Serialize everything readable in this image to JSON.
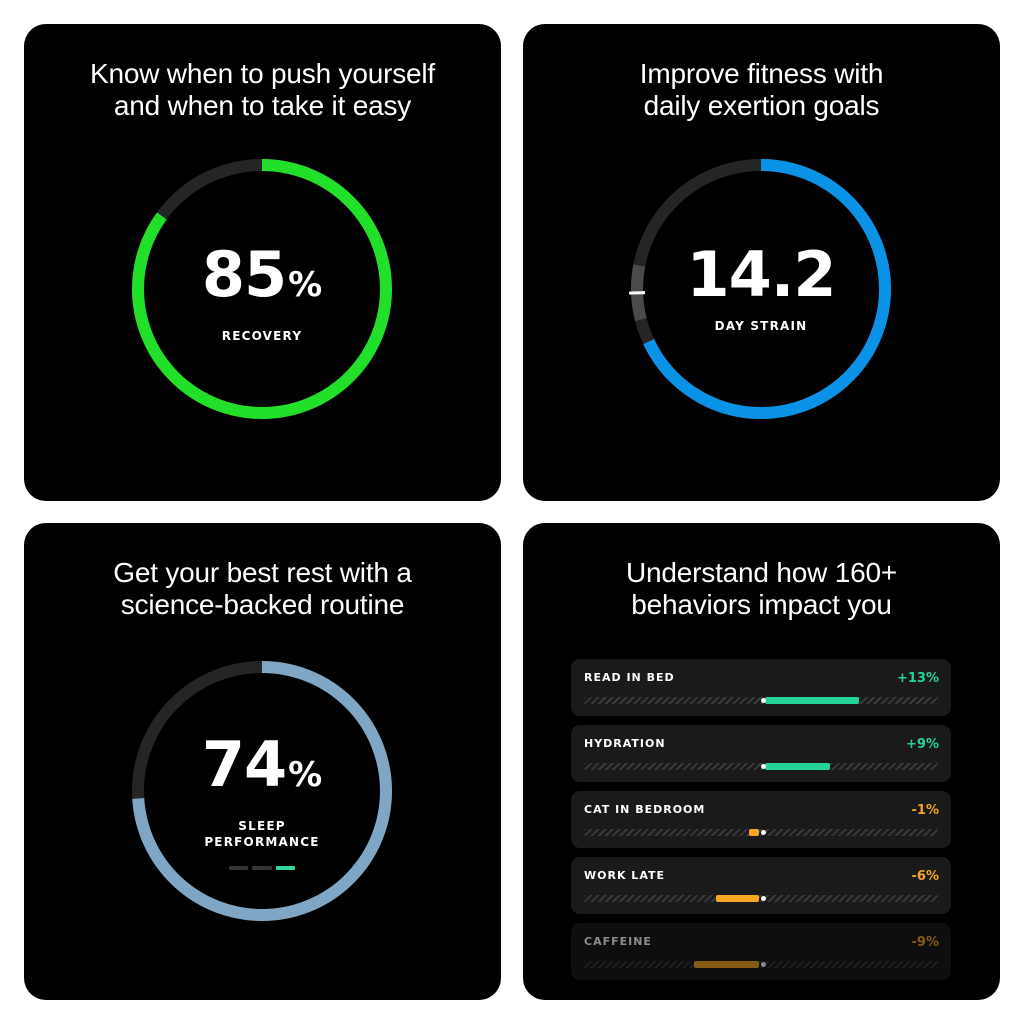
{
  "cards": {
    "recovery": {
      "headline": [
        "Know when to push yourself",
        "and when to take it easy"
      ],
      "value": "85",
      "unit": "%",
      "label": "RECOVERY",
      "progress": 0.85,
      "color": "#22e02a"
    },
    "strain": {
      "headline": [
        "Improve fitness with",
        "daily exertion goals"
      ],
      "value": "14.2",
      "label": "DAY STRAIN",
      "progress": 0.68,
      "target_start": 0.71,
      "target_end": 0.78,
      "color": "#0a93e6"
    },
    "sleep": {
      "headline": [
        "Get your best rest with a",
        "science-backed routine"
      ],
      "value": "74",
      "unit": "%",
      "label": [
        "SLEEP",
        "PERFORMANCE"
      ],
      "progress": 0.74,
      "color": "#7fa6c4",
      "stage_indicator": {
        "count": 3,
        "active": 3,
        "color": "#2fd69a"
      }
    },
    "behaviors": {
      "headline": [
        "Understand how 160+",
        "behaviors impact you"
      ],
      "items": [
        {
          "name": "READ IN BED",
          "impact": "+13%",
          "value": 13,
          "color": "#24d39a"
        },
        {
          "name": "HYDRATION",
          "impact": "+9%",
          "value": 9,
          "color": "#24d39a"
        },
        {
          "name": "CAT IN BEDROOM",
          "impact": "-1%",
          "value": -1,
          "color": "#f5a623"
        },
        {
          "name": "WORK LATE",
          "impact": "-6%",
          "value": -6,
          "color": "#f5a623"
        },
        {
          "name": "CAFFEINE",
          "impact": "-9%",
          "value": -9,
          "color": "#f5a623"
        }
      ]
    }
  },
  "colors": {
    "background": "#000000",
    "ring_track": "#252525",
    "positive": "#24d39a",
    "negative": "#f5a623"
  }
}
